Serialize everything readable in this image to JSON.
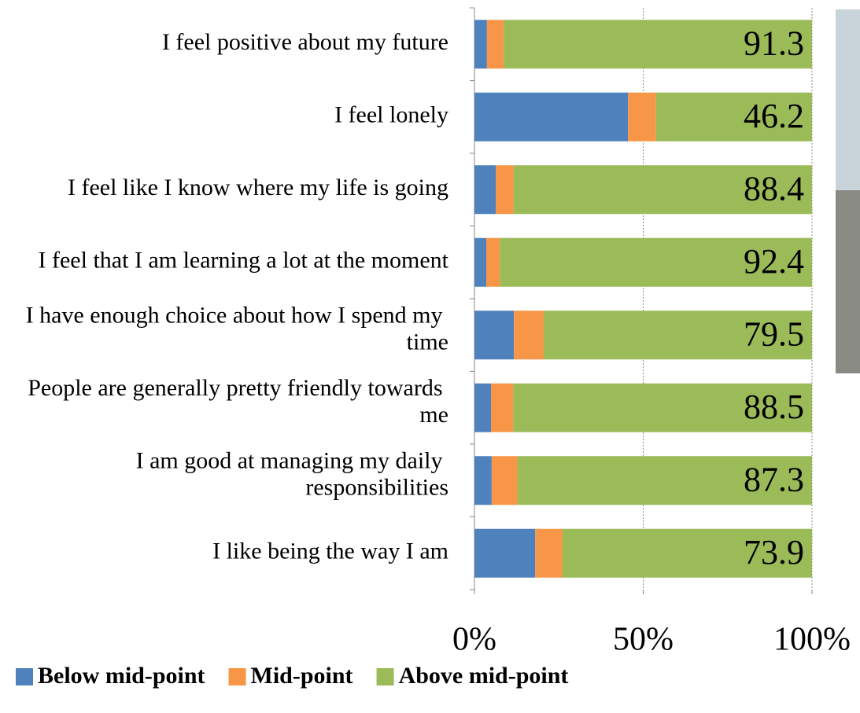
{
  "chart_data": {
    "type": "stacked_bar_horizontal",
    "categories": [
      "I feel positive about my future",
      "I feel lonely",
      "I feel like I know where my life is going",
      "I feel that I am learning a lot at the moment",
      "I have enough choice about how I spend my time",
      "People are generally pretty friendly towards me",
      "I am good at managing my daily responsibilities",
      "I like being the way I am"
    ],
    "series": [
      {
        "name": "Below mid-point",
        "color": "#4f81bd",
        "values": [
          3.7,
          45.5,
          6.3,
          3.5,
          11.7,
          4.9,
          5.1,
          18.0
        ]
      },
      {
        "name": "Mid-point",
        "color": "#f79646",
        "values": [
          5.0,
          8.3,
          5.3,
          4.1,
          8.8,
          6.6,
          7.6,
          8.1
        ]
      },
      {
        "name": "Above mid-point",
        "color": "#9bbb59",
        "values": [
          91.3,
          46.2,
          88.4,
          92.4,
          79.5,
          88.5,
          87.3,
          73.9
        ]
      }
    ],
    "xlim": [
      0,
      100
    ],
    "xticks": [
      {
        "value": 0,
        "label": "0%"
      },
      {
        "value": 50,
        "label": "50%"
      },
      {
        "value": 100,
        "label": "100%"
      }
    ],
    "grid": true,
    "legend": "bottom",
    "data_labels_series": 2
  }
}
